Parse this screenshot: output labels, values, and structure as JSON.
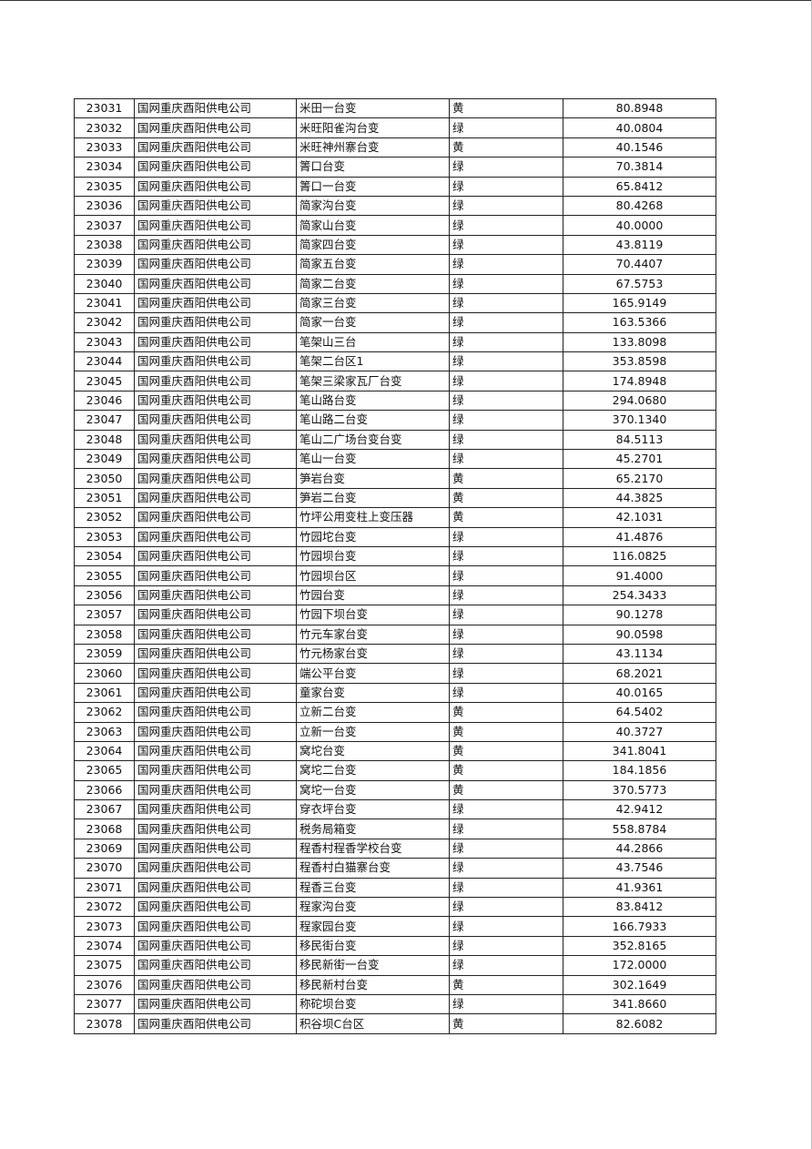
{
  "table": {
    "rows": [
      [
        "23031",
        "国网重庆酉阳供电公司",
        "米田一台变",
        "黄",
        "80.8948"
      ],
      [
        "23032",
        "国网重庆酉阳供电公司",
        "米旺阳雀沟台变",
        "绿",
        "40.0804"
      ],
      [
        "23033",
        "国网重庆酉阳供电公司",
        "米旺神州寨台变",
        "黄",
        "40.1546"
      ],
      [
        "23034",
        "国网重庆酉阳供电公司",
        "箐口台变",
        "绿",
        "70.3814"
      ],
      [
        "23035",
        "国网重庆酉阳供电公司",
        "箐口一台变",
        "绿",
        "65.8412"
      ],
      [
        "23036",
        "国网重庆酉阳供电公司",
        "简家沟台变",
        "绿",
        "80.4268"
      ],
      [
        "23037",
        "国网重庆酉阳供电公司",
        "简家山台变",
        "绿",
        "40.0000"
      ],
      [
        "23038",
        "国网重庆酉阳供电公司",
        "简家四台变",
        "绿",
        "43.8119"
      ],
      [
        "23039",
        "国网重庆酉阳供电公司",
        "简家五台变",
        "绿",
        "70.4407"
      ],
      [
        "23040",
        "国网重庆酉阳供电公司",
        "简家二台变",
        "绿",
        "67.5753"
      ],
      [
        "23041",
        "国网重庆酉阳供电公司",
        "简家三台变",
        "绿",
        "165.9149"
      ],
      [
        "23042",
        "国网重庆酉阳供电公司",
        "简家一台变",
        "绿",
        "163.5366"
      ],
      [
        "23043",
        "国网重庆酉阳供电公司",
        "笔架山三台",
        "绿",
        "133.8098"
      ],
      [
        "23044",
        "国网重庆酉阳供电公司",
        "笔架二台区1",
        "绿",
        "353.8598"
      ],
      [
        "23045",
        "国网重庆酉阳供电公司",
        "笔架三梁家瓦厂台变",
        "绿",
        "174.8948"
      ],
      [
        "23046",
        "国网重庆酉阳供电公司",
        "笔山路台变",
        "绿",
        "294.0680"
      ],
      [
        "23047",
        "国网重庆酉阳供电公司",
        "笔山路二台变",
        "绿",
        "370.1340"
      ],
      [
        "23048",
        "国网重庆酉阳供电公司",
        "笔山二广场台变台变",
        "绿",
        "84.5113"
      ],
      [
        "23049",
        "国网重庆酉阳供电公司",
        "笔山一台变",
        "绿",
        "45.2701"
      ],
      [
        "23050",
        "国网重庆酉阳供电公司",
        "笋岩台变",
        "黄",
        "65.2170"
      ],
      [
        "23051",
        "国网重庆酉阳供电公司",
        "笋岩二台变",
        "黄",
        "44.3825"
      ],
      [
        "23052",
        "国网重庆酉阳供电公司",
        "竹坪公用变柱上变压器",
        "黄",
        "42.1031"
      ],
      [
        "23053",
        "国网重庆酉阳供电公司",
        "竹园坨台变",
        "绿",
        "41.4876"
      ],
      [
        "23054",
        "国网重庆酉阳供电公司",
        "竹园坝台变",
        "绿",
        "116.0825"
      ],
      [
        "23055",
        "国网重庆酉阳供电公司",
        "竹园坝台区",
        "绿",
        "91.4000"
      ],
      [
        "23056",
        "国网重庆酉阳供电公司",
        "竹园台变",
        "绿",
        "254.3433"
      ],
      [
        "23057",
        "国网重庆酉阳供电公司",
        "竹园下坝台变",
        "绿",
        "90.1278"
      ],
      [
        "23058",
        "国网重庆酉阳供电公司",
        "竹元车家台变",
        "绿",
        "90.0598"
      ],
      [
        "23059",
        "国网重庆酉阳供电公司",
        "竹元杨家台变",
        "绿",
        "43.1134"
      ],
      [
        "23060",
        "国网重庆酉阳供电公司",
        "端公平台变",
        "绿",
        "68.2021"
      ],
      [
        "23061",
        "国网重庆酉阳供电公司",
        "童家台变",
        "绿",
        "40.0165"
      ],
      [
        "23062",
        "国网重庆酉阳供电公司",
        "立新二台变",
        "黄",
        "64.5402"
      ],
      [
        "23063",
        "国网重庆酉阳供电公司",
        "立新一台变",
        "黄",
        "40.3727"
      ],
      [
        "23064",
        "国网重庆酉阳供电公司",
        "窝坨台变",
        "黄",
        "341.8041"
      ],
      [
        "23065",
        "国网重庆酉阳供电公司",
        "窝坨二台变",
        "黄",
        "184.1856"
      ],
      [
        "23066",
        "国网重庆酉阳供电公司",
        "窝坨一台变",
        "黄",
        "370.5773"
      ],
      [
        "23067",
        "国网重庆酉阳供电公司",
        "穿衣坪台变",
        "绿",
        "42.9412"
      ],
      [
        "23068",
        "国网重庆酉阳供电公司",
        "税务局箱变",
        "绿",
        "558.8784"
      ],
      [
        "23069",
        "国网重庆酉阳供电公司",
        "程香村程香学校台变",
        "绿",
        "44.2866"
      ],
      [
        "23070",
        "国网重庆酉阳供电公司",
        "程香村白猫寨台变",
        "绿",
        "43.7546"
      ],
      [
        "23071",
        "国网重庆酉阳供电公司",
        "程香三台变",
        "绿",
        "41.9361"
      ],
      [
        "23072",
        "国网重庆酉阳供电公司",
        "程家沟台变",
        "绿",
        "83.8412"
      ],
      [
        "23073",
        "国网重庆酉阳供电公司",
        "程家园台变",
        "绿",
        "166.7933"
      ],
      [
        "23074",
        "国网重庆酉阳供电公司",
        "移民街台变",
        "绿",
        "352.8165"
      ],
      [
        "23075",
        "国网重庆酉阳供电公司",
        "移民新街一台变",
        "绿",
        "172.0000"
      ],
      [
        "23076",
        "国网重庆酉阳供电公司",
        "移民新村台变",
        "黄",
        "302.1649"
      ],
      [
        "23077",
        "国网重庆酉阳供电公司",
        "称砣坝台变",
        "绿",
        "341.8660"
      ],
      [
        "23078",
        "国网重庆酉阳供电公司",
        "积谷坝C台区",
        "黄",
        "82.6082"
      ]
    ]
  }
}
